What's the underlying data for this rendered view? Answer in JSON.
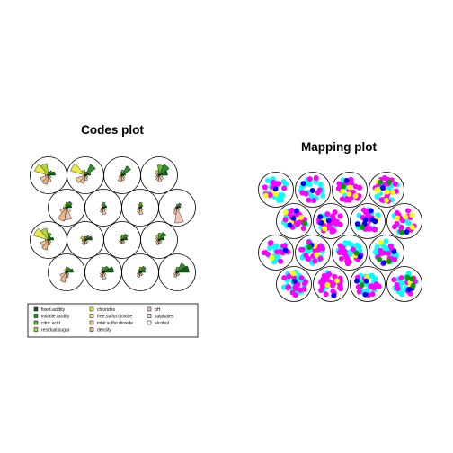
{
  "codes_plot": {
    "title": "Codes plot",
    "variables": [
      {
        "name": "fixed.acidity",
        "color": "#1a5e1a"
      },
      {
        "name": "volatile.acidity",
        "color": "#2e8b2e"
      },
      {
        "name": "citric.acid",
        "color": "#62b832"
      },
      {
        "name": "residual.sugar",
        "color": "#b3d43a"
      },
      {
        "name": "chlorides",
        "color": "#e8e84a"
      },
      {
        "name": "free.sulfur.dioxide",
        "color": "#efe29a"
      },
      {
        "name": "total.sulfur.dioxide",
        "color": "#f0c89a"
      },
      {
        "name": "density",
        "color": "#e9b48a"
      },
      {
        "name": "pH",
        "color": "#f2c8b4"
      },
      {
        "name": "sulphates",
        "color": "#f6dcd0"
      },
      {
        "name": "alcohol",
        "color": "#ffffff"
      }
    ],
    "units": [
      [
        0.4,
        0.3,
        0.2,
        0.7,
        0.85,
        0.2,
        0.5,
        0.55,
        0.4,
        0.2,
        0.1
      ],
      [
        0.3,
        0.7,
        0.2,
        0.3,
        0.9,
        0.1,
        0.6,
        0.5,
        0.3,
        0.2,
        0.1
      ],
      [
        0.2,
        0.6,
        0.3,
        0.2,
        0.1,
        0.1,
        0.2,
        0.4,
        0.3,
        0.2,
        0.1
      ],
      [
        0.5,
        0.7,
        0.6,
        0.3,
        0.2,
        0.1,
        0.2,
        0.3,
        0.4,
        0.3,
        0.2
      ],
      [
        0.3,
        0.4,
        0.3,
        0.2,
        0.1,
        0.2,
        0.4,
        0.8,
        0.7,
        0.3,
        0.1
      ],
      [
        0.2,
        0.2,
        0.3,
        0.2,
        0.1,
        0.1,
        0.2,
        0.3,
        0.4,
        0.2,
        0.1
      ],
      [
        0.1,
        0.2,
        0.3,
        0.2,
        0.1,
        0.1,
        0.2,
        0.3,
        0.4,
        0.2,
        0.1
      ],
      [
        0.2,
        0.3,
        0.2,
        0.1,
        0.1,
        0.1,
        0.2,
        0.4,
        0.9,
        0.2,
        0.1
      ],
      [
        0.3,
        0.2,
        0.4,
        0.7,
        0.9,
        0.2,
        0.5,
        0.6,
        0.3,
        0.2,
        0.1
      ],
      [
        0.4,
        0.3,
        0.2,
        0.2,
        0.3,
        0.2,
        0.2,
        0.3,
        0.2,
        0.2,
        0.1
      ],
      [
        0.3,
        0.4,
        0.3,
        0.2,
        0.1,
        0.1,
        0.2,
        0.2,
        0.2,
        0.2,
        0.1
      ],
      [
        0.3,
        0.5,
        0.4,
        0.3,
        0.2,
        0.1,
        0.2,
        0.3,
        0.2,
        0.2,
        0.1
      ],
      [
        0.4,
        0.3,
        0.3,
        0.2,
        0.1,
        0.1,
        0.4,
        0.6,
        0.3,
        0.2,
        0.1
      ],
      [
        0.6,
        0.4,
        0.3,
        0.2,
        0.1,
        0.1,
        0.2,
        0.3,
        0.4,
        0.2,
        0.1
      ],
      [
        0.3,
        0.4,
        0.3,
        0.2,
        0.1,
        0.1,
        0.2,
        0.3,
        0.2,
        0.2,
        0.1
      ],
      [
        0.7,
        0.6,
        0.3,
        0.2,
        0.1,
        0.1,
        0.2,
        0.3,
        0.2,
        0.2,
        0.1
      ]
    ]
  },
  "mapping_plot": {
    "title": "Mapping plot",
    "point_colors": [
      "#00ffff",
      "#ff00ff",
      "#ffff00",
      "#0000ff",
      "#009900"
    ],
    "point_counts": [
      [
        18,
        10,
        3,
        1,
        0
      ],
      [
        20,
        8,
        0,
        2,
        0
      ],
      [
        10,
        22,
        5,
        1,
        1
      ],
      [
        12,
        20,
        6,
        1,
        2
      ],
      [
        10,
        18,
        3,
        3,
        1
      ],
      [
        8,
        20,
        2,
        3,
        0
      ],
      [
        12,
        16,
        2,
        6,
        1
      ],
      [
        8,
        14,
        4,
        1,
        1
      ],
      [
        14,
        12,
        1,
        1,
        0
      ],
      [
        16,
        16,
        2,
        1,
        1
      ],
      [
        14,
        18,
        1,
        1,
        1
      ],
      [
        24,
        12,
        2,
        2,
        2
      ],
      [
        20,
        16,
        1,
        1,
        0
      ],
      [
        14,
        28,
        2,
        1,
        0
      ],
      [
        18,
        12,
        2,
        3,
        1
      ],
      [
        20,
        10,
        2,
        2,
        3
      ]
    ]
  }
}
